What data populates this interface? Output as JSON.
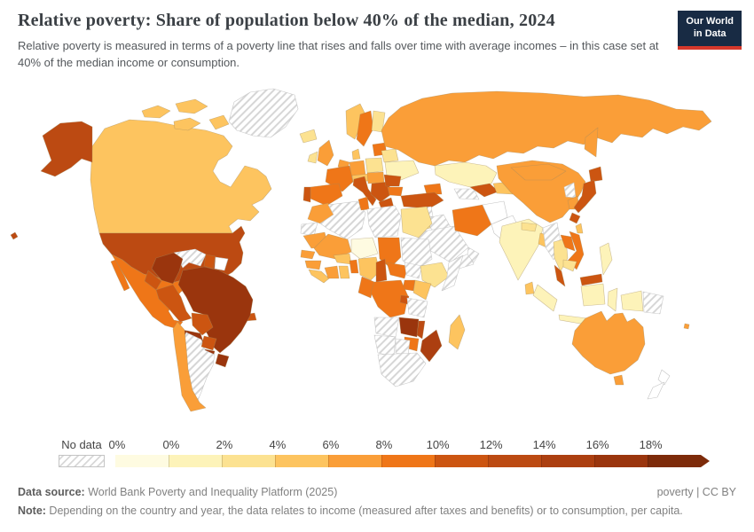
{
  "header": {
    "title": "Relative poverty: Share of population below 40% of the median, 2024",
    "subtitle": "Relative poverty is measured in terms of a poverty line that rises and falls over time with average incomes – in this case set at 40% of the median income or consumption.",
    "logo": {
      "line1": "Our World",
      "line2": "in Data",
      "bg": "#182b44",
      "accent": "#d6382b"
    }
  },
  "legend": {
    "no_data_label": "No data",
    "bins": [
      {
        "tick": "0%",
        "color": "#FEFBE1"
      },
      {
        "tick": "0%",
        "color": "#FDF3B9"
      },
      {
        "tick": "2%",
        "color": "#FCE291"
      },
      {
        "tick": "4%",
        "color": "#FDC45F"
      },
      {
        "tick": "6%",
        "color": "#FA9E38"
      },
      {
        "tick": "8%",
        "color": "#EF7618"
      },
      {
        "tick": "10%",
        "color": "#CC5511"
      },
      {
        "tick": "12%",
        "color": "#BC4A12"
      },
      {
        "tick": "14%",
        "color": "#AC3F10"
      },
      {
        "tick": "16%",
        "color": "#9A350D"
      },
      {
        "tick": "18%",
        "color": "#7D2B0A"
      }
    ]
  },
  "chart_data": {
    "type": "choropleth",
    "title": "Relative poverty: Share of population below 40% of the median",
    "year": "2024",
    "unit": "%",
    "bin_meaning": "bin = index into legend.bins; value lies between that tick and the next; 'nodata' = hatched; 'white' = blank outline",
    "countries": {
      "greenland": {
        "label": "Greenland",
        "bin": "nodata"
      },
      "canada": {
        "label": "Canada",
        "bin": 3
      },
      "usa": {
        "label": "United States",
        "bin": 7
      },
      "mexico": {
        "label": "Mexico",
        "bin": 5
      },
      "guatemala": {
        "label": "Guatemala",
        "bin": 9
      },
      "honduras-nicaragua": {
        "label": "Honduras & Nicaragua",
        "bin": 9
      },
      "costa-rica-panama": {
        "label": "Costa Rica & Panama",
        "bin": 9
      },
      "cuba": {
        "label": "Cuba",
        "bin": "nodata"
      },
      "dominican-republic": {
        "label": "Dominican Republic",
        "bin": 6
      },
      "venezuela": {
        "label": "Venezuela",
        "bin": "nodata"
      },
      "colombia": {
        "label": "Colombia",
        "bin": 9
      },
      "guyana": {
        "label": "Guyana",
        "bin": 6
      },
      "suriname": {
        "label": "Suriname",
        "bin": "white"
      },
      "brazil": {
        "label": "Brazil",
        "bin": 9
      },
      "ecuador": {
        "label": "Ecuador",
        "bin": 6
      },
      "peru": {
        "label": "Peru",
        "bin": 6
      },
      "bolivia": {
        "label": "Bolivia",
        "bin": 6
      },
      "paraguay": {
        "label": "Paraguay",
        "bin": 6
      },
      "argentina": {
        "label": "Argentina",
        "bin": "nodata"
      },
      "uruguay": {
        "label": "Uruguay",
        "bin": 9
      },
      "chile": {
        "label": "Chile",
        "bin": 4
      },
      "iceland": {
        "label": "Iceland",
        "bin": 2
      },
      "norway": {
        "label": "Norway",
        "bin": 3
      },
      "sweden": {
        "label": "Sweden",
        "bin": 5
      },
      "finland": {
        "label": "Finland",
        "bin": 2
      },
      "baltics": {
        "label": "Baltic states",
        "bin": 5
      },
      "uk": {
        "label": "United Kingdom",
        "bin": 4
      },
      "ireland": {
        "label": "Ireland",
        "bin": 2
      },
      "denmark": {
        "label": "Denmark",
        "bin": 3
      },
      "germany": {
        "label": "Germany",
        "bin": 4
      },
      "netherlands-belgium": {
        "label": "Netherlands & Belgium",
        "bin": 4
      },
      "poland": {
        "label": "Poland",
        "bin": 2
      },
      "belarus": {
        "label": "Belarus",
        "bin": 2
      },
      "ukraine": {
        "label": "Ukraine",
        "bin": 1
      },
      "france": {
        "label": "France",
        "bin": 5
      },
      "spain": {
        "label": "Spain",
        "bin": 5
      },
      "portugal": {
        "label": "Portugal",
        "bin": 6
      },
      "switzerland-austria": {
        "label": "Switzerland & Austria",
        "bin": 3
      },
      "czechia-hungary": {
        "label": "Czechia & Hungary",
        "bin": 4
      },
      "italy": {
        "label": "Italy",
        "bin": 6
      },
      "balkans": {
        "label": "Western Balkans",
        "bin": 6
      },
      "romania": {
        "label": "Romania",
        "bin": 6
      },
      "bulgaria": {
        "label": "Bulgaria",
        "bin": 5
      },
      "greece": {
        "label": "Greece",
        "bin": 6
      },
      "russia": {
        "label": "Russia",
        "bin": 4
      },
      "kazakhstan": {
        "label": "Kazakhstan",
        "bin": 1
      },
      "caucasus": {
        "label": "Caucasus",
        "bin": 5
      },
      "turkey": {
        "label": "Turkey",
        "bin": 6
      },
      "syria": {
        "label": "Syria",
        "bin": "nodata"
      },
      "iraq": {
        "label": "Iraq",
        "bin": "nodata"
      },
      "israel": {
        "label": "Israel",
        "bin": 8
      },
      "jordan": {
        "label": "Jordan",
        "bin": 2
      },
      "saudi-arabia": {
        "label": "Saudi Arabia",
        "bin": "nodata"
      },
      "yemen": {
        "label": "Yemen",
        "bin": "nodata"
      },
      "oman": {
        "label": "Oman",
        "bin": "nodata"
      },
      "turkmenistan": {
        "label": "Turkmenistan",
        "bin": "nodata"
      },
      "uzbekistan": {
        "label": "Uzbekistan",
        "bin": 6
      },
      "kyrgyzstan-tajikistan": {
        "label": "Kyrgyzstan & Tajikistan",
        "bin": 3
      },
      "iran": {
        "label": "Iran",
        "bin": 5
      },
      "afghanistan": {
        "label": "Afghanistan",
        "bin": "white"
      },
      "pakistan": {
        "label": "Pakistan",
        "bin": "white"
      },
      "india": {
        "label": "India",
        "bin": 1
      },
      "nepal": {
        "label": "Nepal",
        "bin": 2
      },
      "bangladesh": {
        "label": "Bangladesh",
        "bin": 3
      },
      "sri-lanka": {
        "label": "Sri Lanka",
        "bin": 3
      },
      "china": {
        "label": "China",
        "bin": 4
      },
      "mongolia": {
        "label": "Mongolia",
        "bin": 4
      },
      "myanmar": {
        "label": "Myanmar",
        "bin": "nodata"
      },
      "thailand": {
        "label": "Thailand",
        "bin": 2
      },
      "laos": {
        "label": "Laos",
        "bin": 5
      },
      "vietnam": {
        "label": "Vietnam",
        "bin": 5
      },
      "cambodia": {
        "label": "Cambodia",
        "bin": 2
      },
      "malaysia": {
        "label": "Malaysia",
        "bin": 6
      },
      "indonesia": {
        "label": "Indonesia",
        "bin": 1
      },
      "papua-new-guinea": {
        "label": "Papua New Guinea",
        "bin": "nodata"
      },
      "philippines": {
        "label": "Philippines",
        "bin": 1
      },
      "north-korea": {
        "label": "North Korea",
        "bin": "nodata"
      },
      "south-korea": {
        "label": "South Korea",
        "bin": 4
      },
      "japan": {
        "label": "Japan",
        "bin": 6
      },
      "taiwan": {
        "label": "Taiwan",
        "bin": 3
      },
      "morocco": {
        "label": "Morocco",
        "bin": 4
      },
      "western-sahara": {
        "label": "Western Sahara",
        "bin": "nodata"
      },
      "algeria": {
        "label": "Algeria",
        "bin": "nodata"
      },
      "tunisia": {
        "label": "Tunisia",
        "bin": 5
      },
      "libya": {
        "label": "Libya",
        "bin": "nodata"
      },
      "egypt": {
        "label": "Egypt",
        "bin": 2
      },
      "mauritania": {
        "label": "Mauritania",
        "bin": 4
      },
      "mali": {
        "label": "Mali",
        "bin": 4
      },
      "niger": {
        "label": "Niger",
        "bin": 0
      },
      "chad": {
        "label": "Chad",
        "bin": 5
      },
      "sudan": {
        "label": "Sudan",
        "bin": "nodata"
      },
      "senegal": {
        "label": "Senegal",
        "bin": 4
      },
      "guinea": {
        "label": "Guinea",
        "bin": 4
      },
      "sierra-leone-liberia": {
        "label": "Sierra Leone & Liberia",
        "bin": 3
      },
      "ivory-coast": {
        "label": "Côte d'Ivoire",
        "bin": 4
      },
      "ghana": {
        "label": "Ghana",
        "bin": 3
      },
      "burkina-faso": {
        "label": "Burkina Faso",
        "bin": 3
      },
      "benin-togo": {
        "label": "Benin & Togo",
        "bin": 5
      },
      "nigeria": {
        "label": "Nigeria",
        "bin": 3
      },
      "cameroon": {
        "label": "Cameroon",
        "bin": 6
      },
      "central-african-republic": {
        "label": "Central African Republic",
        "bin": 5
      },
      "south-sudan": {
        "label": "South Sudan",
        "bin": "nodata"
      },
      "ethiopia": {
        "label": "Ethiopia",
        "bin": 2
      },
      "somalia": {
        "label": "Somalia",
        "bin": "nodata"
      },
      "uganda": {
        "label": "Uganda",
        "bin": 5
      },
      "kenya": {
        "label": "Kenya",
        "bin": 3
      },
      "congo-gabon": {
        "label": "Congo & Gabon",
        "bin": 5
      },
      "drc": {
        "label": "Democratic Republic of Congo",
        "bin": 5
      },
      "rwanda-burundi": {
        "label": "Rwanda & Burundi",
        "bin": 6
      },
      "tanzania": {
        "label": "Tanzania",
        "bin": "nodata"
      },
      "angola": {
        "label": "Angola",
        "bin": "nodata"
      },
      "zambia": {
        "label": "Zambia",
        "bin": 9
      },
      "malawi": {
        "label": "Malawi",
        "bin": 7
      },
      "mozambique": {
        "label": "Mozambique",
        "bin": 8
      },
      "zimbabwe": {
        "label": "Zimbabwe",
        "bin": 5
      },
      "namibia": {
        "label": "Namibia",
        "bin": "nodata"
      },
      "botswana": {
        "label": "Botswana",
        "bin": "nodata"
      },
      "south-africa": {
        "label": "South Africa",
        "bin": "nodata"
      },
      "madagascar": {
        "label": "Madagascar",
        "bin": 3
      },
      "australia": {
        "label": "Australia",
        "bin": 4
      },
      "new-zealand": {
        "label": "New Zealand",
        "bin": "white"
      },
      "fiji": {
        "label": "Fiji",
        "bin": 4
      }
    }
  },
  "footer": {
    "source_label": "Data source:",
    "source_text": " World Bank Poverty and Inequality Platform (2025)",
    "license": "poverty | CC BY",
    "note_label": "Note:",
    "note_text": " Depending on the country and year, the data relates to income (measured after taxes and benefits) or to consumption, per capita."
  }
}
